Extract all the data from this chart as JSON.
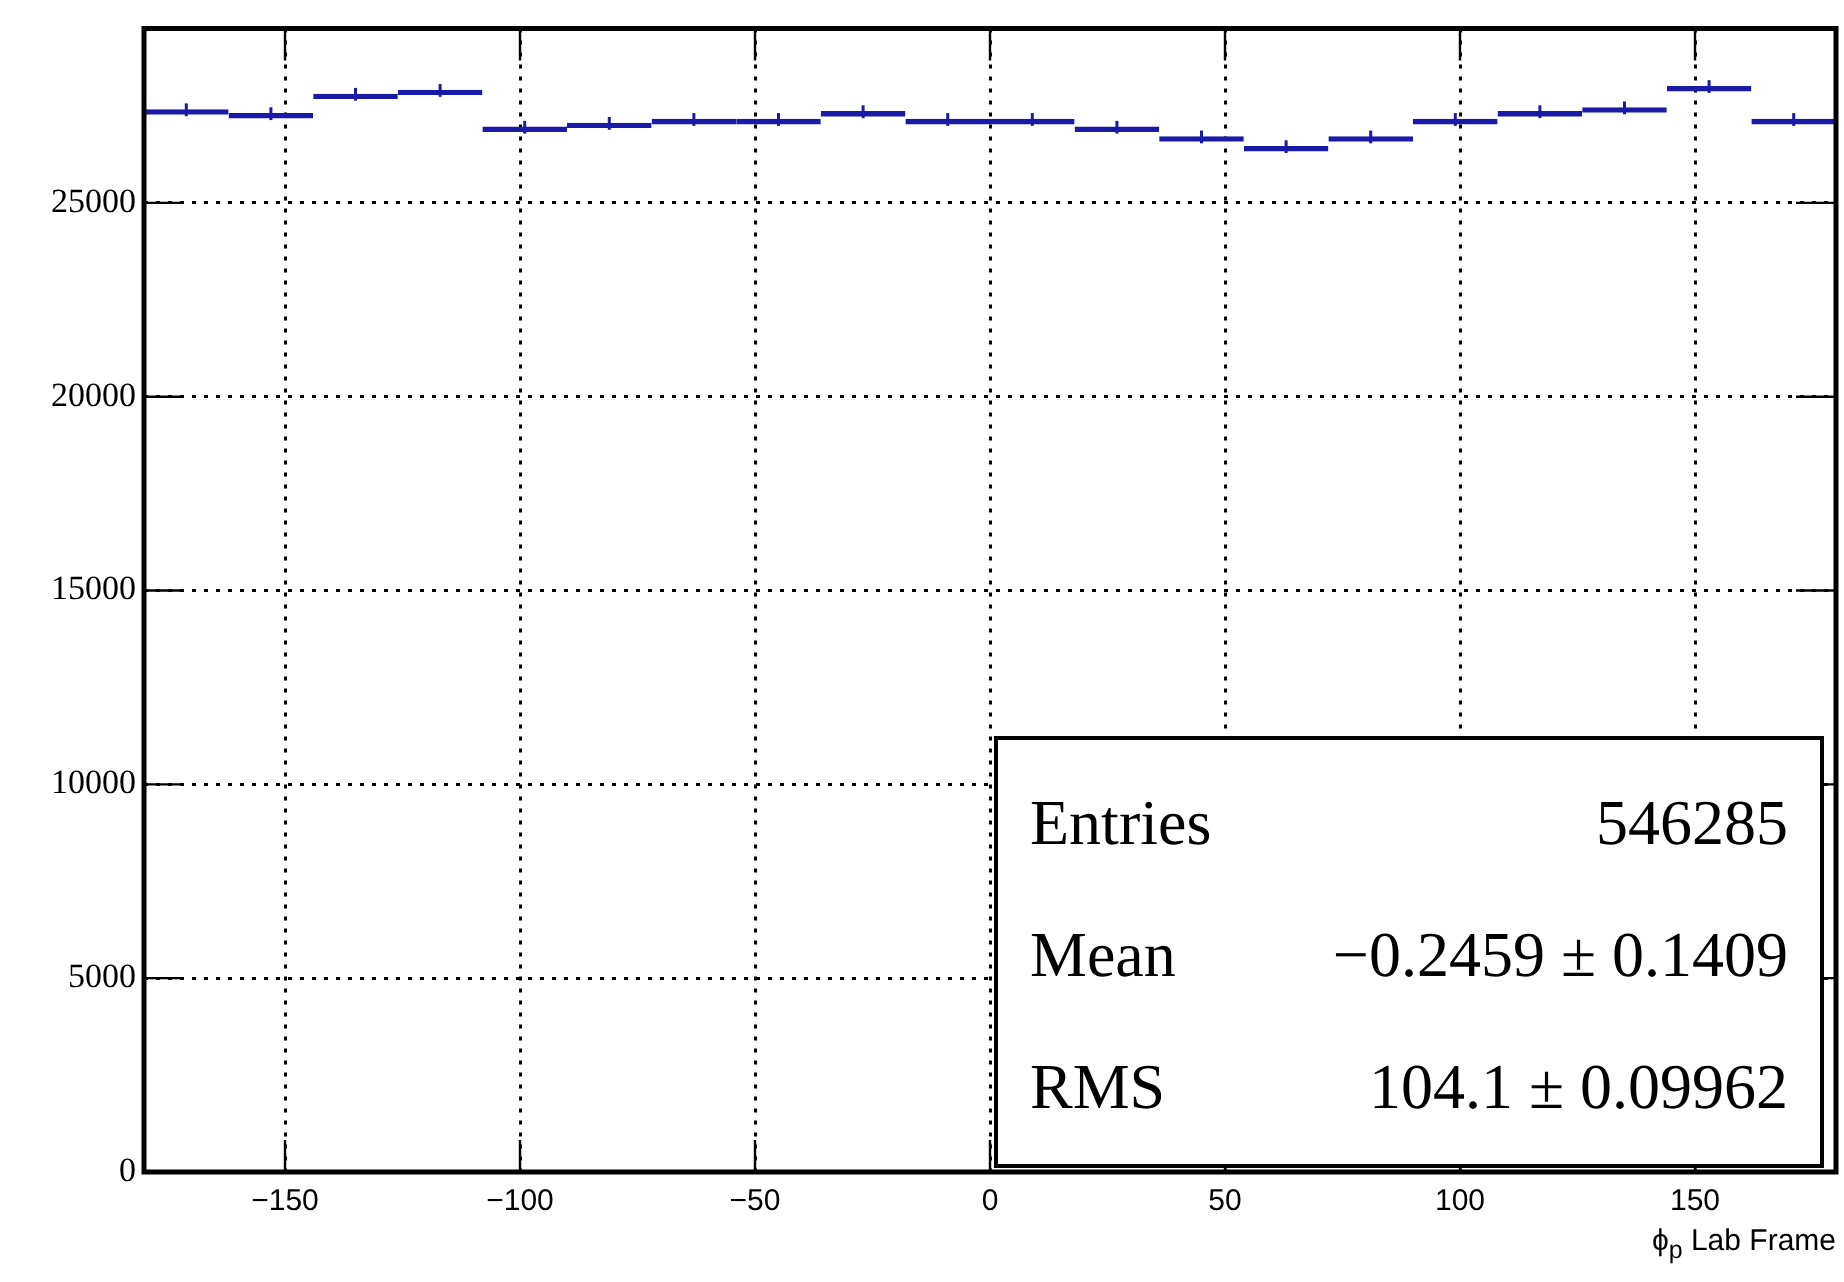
{
  "chart_data": {
    "type": "histogram",
    "xlabel": "ϕ$_{p}$ Lab Frame",
    "bins": [
      -180,
      -162,
      -144,
      -126,
      -108,
      -90,
      -72,
      -54,
      -36,
      -18,
      0,
      18,
      36,
      54,
      72,
      90,
      108,
      126,
      144,
      162,
      180
    ],
    "values": [
      27400,
      27300,
      27800,
      27900,
      26950,
      27050,
      27150,
      27150,
      27350,
      27150,
      27150,
      26950,
      26700,
      26450,
      26700,
      27150,
      27350,
      27450,
      28000,
      27150
    ],
    "errors": [
      165,
      165,
      165,
      165,
      165,
      165,
      165,
      165,
      165,
      165,
      165,
      165,
      165,
      165,
      165,
      165,
      165,
      165,
      165,
      165
    ],
    "color": "#1a1aa6",
    "xlim": [
      -180,
      180
    ],
    "xticks": [
      -150,
      -100,
      -50,
      0,
      50,
      100,
      150
    ],
    "ylim": [
      0,
      29500
    ],
    "yticks": [
      0,
      5000,
      10000,
      15000,
      20000,
      25000
    ],
    "grid": true,
    "annotations": [
      "Entries 546285",
      "Mean −0.2459 ± 0.1409",
      "RMS 104.1 ± 0.09962"
    ]
  }
}
